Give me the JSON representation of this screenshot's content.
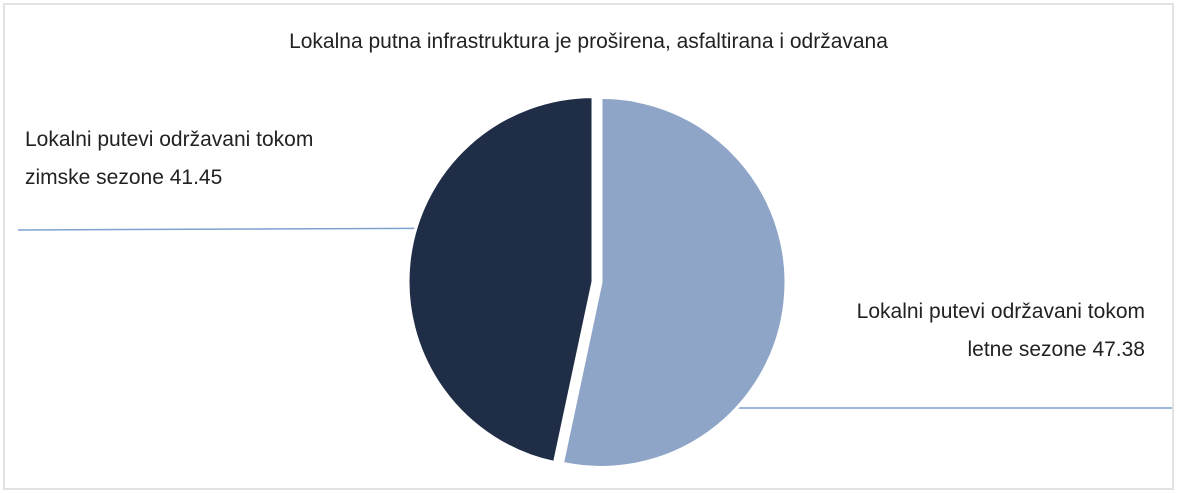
{
  "chart_data": {
    "type": "pie",
    "title": "Lokalna putna infrastruktura je proširena, asfaltirana i održavana",
    "categories": [
      "Lokalni putevi održavani tokom letne sezone",
      "Lokalni putevi održavani tokom zimske sezone"
    ],
    "values": [
      47.38,
      41.45
    ],
    "colors": [
      "#8ea5c8",
      "#1f2d47"
    ]
  }
}
